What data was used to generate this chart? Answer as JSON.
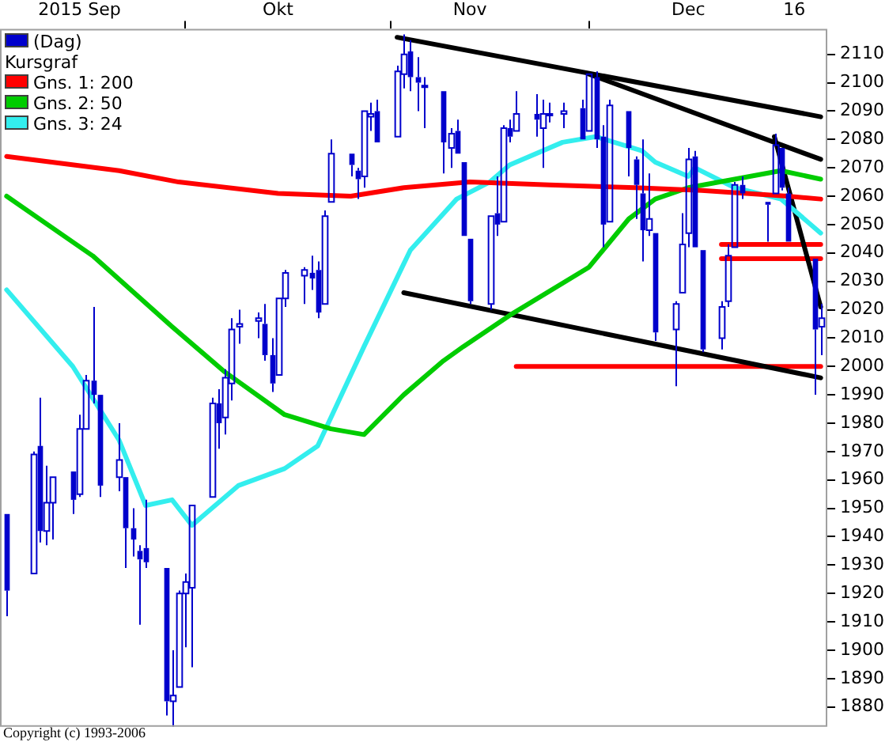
{
  "chart_data": {
    "type": "candlestick",
    "x": [
      "2015-09-04",
      "2015-09-08",
      "2015-09-09",
      "2015-09-10",
      "2015-09-11",
      "2015-09-14",
      "2015-09-15",
      "2015-09-16",
      "2015-09-17",
      "2015-09-18",
      "2015-09-21",
      "2015-09-22",
      "2015-09-23",
      "2015-09-24",
      "2015-09-25",
      "2015-09-28",
      "2015-09-29",
      "2015-09-30",
      "2015-10-01",
      "2015-10-02",
      "2015-10-05",
      "2015-10-06",
      "2015-10-07",
      "2015-10-08",
      "2015-10-09",
      "2015-10-12",
      "2015-10-13",
      "2015-10-14",
      "2015-10-15",
      "2015-10-16",
      "2015-10-19",
      "2015-10-20",
      "2015-10-21",
      "2015-10-22",
      "2015-10-23",
      "2015-10-26",
      "2015-10-27",
      "2015-10-28",
      "2015-10-29",
      "2015-10-30",
      "2015-11-02",
      "2015-11-03",
      "2015-11-04",
      "2015-11-05",
      "2015-11-06",
      "2015-11-09",
      "2015-11-10",
      "2015-11-11",
      "2015-11-12",
      "2015-11-13",
      "2015-11-16",
      "2015-11-17",
      "2015-11-18",
      "2015-11-19",
      "2015-11-20",
      "2015-11-23",
      "2015-11-24",
      "2015-11-25",
      "2015-11-27",
      "2015-11-30",
      "2015-12-01",
      "2015-12-02",
      "2015-12-03",
      "2015-12-04",
      "2015-12-07",
      "2015-12-08",
      "2015-12-09",
      "2015-12-10",
      "2015-12-11",
      "2015-12-14",
      "2015-12-15",
      "2015-12-16",
      "2015-12-17",
      "2015-12-18",
      "2015-12-21",
      "2015-12-22",
      "2015-12-23",
      "2015-12-24",
      "2015-12-28",
      "2015-12-29",
      "2015-12-30",
      "2015-12-31",
      "2016-01-04",
      "2016-01-05"
    ],
    "series": [
      {
        "name": "(Dag)",
        "color": "#0000cc",
        "ohlc": [
          [
            1948,
            1948,
            1912,
            1921
          ],
          [
            1927,
            1970,
            1927,
            1969
          ],
          [
            1972,
            1989,
            1938,
            1942
          ],
          [
            1942,
            1965,
            1937,
            1952
          ],
          [
            1952,
            1961,
            1939,
            1961
          ],
          [
            1963,
            1963,
            1948,
            1953
          ],
          [
            1955,
            1983,
            1954,
            1978
          ],
          [
            1978,
            1997,
            1978,
            1995
          ],
          [
            1995,
            2021,
            1987,
            1990
          ],
          [
            1990,
            1990,
            1954,
            1958
          ],
          [
            1961,
            1980,
            1956,
            1967
          ],
          [
            1961,
            1961,
            1929,
            1943
          ],
          [
            1943,
            1950,
            1933,
            1939
          ],
          [
            1935,
            1937,
            1909,
            1932
          ],
          [
            1936,
            1953,
            1929,
            1931
          ],
          [
            1929,
            1929,
            1877,
            1882
          ],
          [
            1882,
            1900,
            1872,
            1884
          ],
          [
            1887,
            1921,
            1887,
            1920
          ],
          [
            1920,
            1927,
            1901,
            1924
          ],
          [
            1922,
            1951,
            1894,
            1951
          ],
          [
            1954,
            1989,
            1954,
            1987
          ],
          [
            1987,
            1992,
            1971,
            1980
          ],
          [
            1982,
            1999,
            1976,
            1996
          ],
          [
            1994,
            2017,
            1988,
            2013
          ],
          [
            2014,
            2020,
            2008,
            2015
          ],
          [
            2016,
            2019,
            2010,
            2017
          ],
          [
            2015,
            2022,
            2002,
            2004
          ],
          [
            2004,
            2010,
            1991,
            1994
          ],
          [
            1997,
            2024,
            1997,
            2024
          ],
          [
            2024,
            2034,
            2021,
            2033
          ],
          [
            2032,
            2035,
            2022,
            2034
          ],
          [
            2033,
            2039,
            2027,
            2031
          ],
          [
            2034,
            2037,
            2017,
            2019
          ],
          [
            2022,
            2055,
            2022,
            2053
          ],
          [
            2058,
            2080,
            2058,
            2075
          ],
          [
            2075,
            2075,
            2067,
            2071
          ],
          [
            2069,
            2070,
            2059,
            2066
          ],
          [
            2067,
            2090,
            2063,
            2090
          ],
          [
            2088,
            2093,
            2083,
            2089
          ],
          [
            2090,
            2094,
            2079,
            2079
          ],
          [
            2081,
            2106,
            2081,
            2104
          ],
          [
            2103,
            2117,
            2098,
            2110
          ],
          [
            2111,
            2115,
            2097,
            2102
          ],
          [
            2102,
            2109,
            2090,
            2100
          ],
          [
            2099,
            2102,
            2084,
            2099
          ],
          [
            2097,
            2097,
            2068,
            2079
          ],
          [
            2077,
            2084,
            2070,
            2082
          ],
          [
            2083,
            2087,
            2075,
            2075
          ],
          [
            2072,
            2072,
            2046,
            2046
          ],
          [
            2045,
            2045,
            2022,
            2023
          ],
          [
            2022,
            2053,
            2020,
            2053
          ],
          [
            2054,
            2067,
            2046,
            2050
          ],
          [
            2051,
            2085,
            2051,
            2084
          ],
          [
            2084,
            2087,
            2079,
            2081
          ],
          [
            2083,
            2097,
            2083,
            2089
          ],
          [
            2089,
            2096,
            2081,
            2087
          ],
          [
            2084,
            2094,
            2070,
            2089
          ],
          [
            2089,
            2093,
            2086,
            2089
          ],
          [
            2089,
            2093,
            2084,
            2090
          ],
          [
            2091,
            2094,
            2080,
            2080
          ],
          [
            2083,
            2103,
            2083,
            2103
          ],
          [
            2102,
            2104,
            2077,
            2080
          ],
          [
            2081,
            2085,
            2042,
            2050
          ],
          [
            2051,
            2094,
            2051,
            2092
          ],
          [
            2090,
            2090,
            2067,
            2077
          ],
          [
            2073,
            2074,
            2052,
            2064
          ],
          [
            2061,
            2080,
            2037,
            2048
          ],
          [
            2048,
            2068,
            2046,
            2052
          ],
          [
            2047,
            2047,
            2009,
            2012
          ],
          [
            2013,
            2023,
            1993,
            2022
          ],
          [
            2026,
            2054,
            2026,
            2043
          ],
          [
            2047,
            2077,
            2042,
            2073
          ],
          [
            2074,
            2076,
            2042,
            2042
          ],
          [
            2041,
            2041,
            2005,
            2006
          ],
          [
            2010,
            2023,
            2006,
            2021
          ],
          [
            2023,
            2043,
            2021,
            2039
          ],
          [
            2042,
            2065,
            2042,
            2064
          ],
          [
            2064,
            2067,
            2059,
            2061
          ],
          [
            2058,
            2058,
            2044,
            2057
          ],
          [
            2061,
            2082,
            2061,
            2078
          ],
          [
            2077,
            2077,
            2062,
            2063
          ],
          [
            2061,
            2063,
            2044,
            2044
          ],
          [
            2038,
            2038,
            1990,
            2013
          ],
          [
            2014,
            2022,
            2004,
            2017
          ]
        ]
      },
      {
        "type": "line",
        "name": "Gns. 1: 200",
        "color": "#ff0000",
        "x": [
          "2015-09-04",
          "2015-09-21",
          "2015-09-30",
          "2015-10-15",
          "2015-10-26",
          "2015-11-03",
          "2015-11-13",
          "2015-11-25",
          "2015-12-08",
          "2015-12-18",
          "2015-12-31",
          "2016-01-05"
        ],
        "values": [
          2074,
          2069,
          2065,
          2061,
          2060,
          2063,
          2065,
          2064,
          2063,
          2062,
          2060,
          2059
        ]
      },
      {
        "type": "line",
        "name": "Gns. 2: 50",
        "color": "#00cc00",
        "x": [
          "2015-09-04",
          "2015-09-17",
          "2015-09-29",
          "2015-10-07",
          "2015-10-16",
          "2015-10-23",
          "2015-10-28",
          "2015-11-03",
          "2015-11-09",
          "2015-11-12",
          "2015-11-19",
          "2015-12-01",
          "2015-12-07",
          "2015-12-11",
          "2015-12-16",
          "2015-12-23",
          "2015-12-30",
          "2016-01-05"
        ],
        "values": [
          2060,
          2039,
          2014,
          1998,
          1983,
          1978,
          1976,
          1990,
          2002,
          2007,
          2018,
          2035,
          2052,
          2059,
          2063,
          2066,
          2069,
          2066
        ]
      },
      {
        "type": "line",
        "name": "Gns. 3: 24",
        "color": "#33eeee",
        "x": [
          "2015-09-04",
          "2015-09-14",
          "2015-09-21",
          "2015-09-25",
          "2015-09-29",
          "2015-10-02",
          "2015-10-09",
          "2015-10-16",
          "2015-10-21",
          "2015-10-28",
          "2015-11-04",
          "2015-11-11",
          "2015-11-16",
          "2015-11-19",
          "2015-11-27",
          "2015-12-02",
          "2015-12-09",
          "2015-12-11",
          "2015-12-16",
          "2015-12-17",
          "2015-12-23",
          "2015-12-30",
          "2016-01-05"
        ],
        "values": [
          2027,
          2000,
          1974,
          1951,
          1953,
          1944,
          1958,
          1964,
          1972,
          2007,
          2041,
          2059,
          2065,
          2071,
          2079,
          2081,
          2076,
          2072,
          2067,
          2070,
          2063,
          2059,
          2047
        ]
      },
      {
        "type": "line",
        "color": "#000000",
        "x": [
          "2015-11-02",
          "2016-01-05"
        ],
        "values": [
          2116,
          2088
        ]
      },
      {
        "type": "line",
        "color": "#000000",
        "x": [
          "2015-12-01",
          "2016-01-05"
        ],
        "values": [
          2103,
          2073
        ]
      },
      {
        "type": "line",
        "color": "#000000",
        "x": [
          "2015-12-29",
          "2016-01-05"
        ],
        "values": [
          2081,
          2021
        ]
      },
      {
        "type": "line",
        "color": "#000000",
        "x": [
          "2015-11-03",
          "2016-01-05"
        ],
        "values": [
          2026,
          1996
        ]
      },
      {
        "type": "line",
        "color": "#ff0000",
        "x": [
          "2015-11-20",
          "2016-01-05"
        ],
        "values": [
          2000,
          2000
        ]
      },
      {
        "type": "line",
        "color": "#ff0000",
        "x": [
          "2015-12-21",
          "2016-01-05"
        ],
        "values": [
          2043,
          2043
        ]
      },
      {
        "type": "line",
        "color": "#ff0000",
        "x": [
          "2015-12-21",
          "2016-01-05"
        ],
        "values": [
          2038,
          2038
        ]
      }
    ],
    "xlim": [
      "2015-09-03",
      "2016-01-06"
    ],
    "xticks": [
      {
        "value": "2015-09-15",
        "label": "2015 Sep"
      },
      {
        "value": "2015-10-01",
        "label": null
      },
      {
        "value": "2015-10-15",
        "label": "Okt"
      },
      {
        "value": "2015-11-01",
        "label": null
      },
      {
        "value": "2015-11-13",
        "label": "Nov"
      },
      {
        "value": "2015-12-01",
        "label": null
      },
      {
        "value": "2015-12-16",
        "label": "Dec"
      },
      {
        "value": "2016-01-01",
        "label": "16"
      }
    ],
    "ylim": [
      1873,
      2119
    ],
    "yticks": [
      1880,
      1890,
      1900,
      1910,
      1920,
      1930,
      1940,
      1950,
      1960,
      1970,
      1980,
      1990,
      2000,
      2010,
      2020,
      2030,
      2040,
      2050,
      2060,
      2070,
      2080,
      2090,
      2100,
      2110
    ],
    "legend": "top left",
    "legend_title": "Kursgraf",
    "marker": "none",
    "line_style": "solid",
    "annotations": [
      "Copyright (c) 1993-2006"
    ]
  }
}
